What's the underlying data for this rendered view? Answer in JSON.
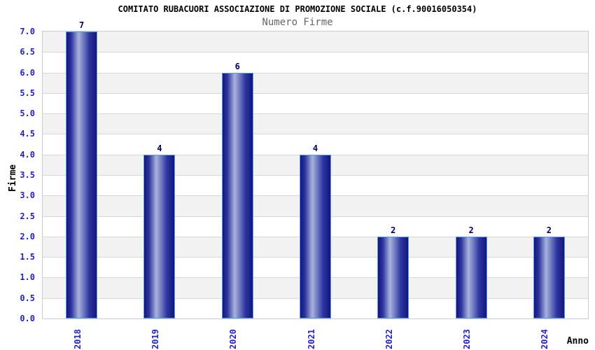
{
  "chart_data": {
    "type": "bar",
    "title": "COMITATO RUBACUORI ASSOCIAZIONE DI PROMOZIONE SOCIALE (c.f.90016050354)",
    "subtitle": "Numero Firme",
    "xlabel": "Anno",
    "ylabel": "Firme",
    "categories": [
      "2018",
      "2019",
      "2020",
      "2021",
      "2022",
      "2023",
      "2024"
    ],
    "values": [
      7,
      4,
      6,
      4,
      2,
      2,
      2
    ],
    "ylim": [
      0,
      7
    ],
    "ytick_step": 0.5,
    "ytick_labels": [
      "0.0",
      "0.5",
      "1.0",
      "1.5",
      "2.0",
      "2.5",
      "3.0",
      "3.5",
      "4.0",
      "4.5",
      "5.0",
      "5.5",
      "6.0",
      "6.5",
      "7.0"
    ],
    "legend": "none",
    "grid": "horizontal-bands",
    "colors": {
      "bar_edge_dark": "#15157c",
      "bar_mid_dark": "#2c35a0",
      "bar_light": "#a9b3dd",
      "bar_border": "#55a0e8",
      "value_label": "#000066",
      "tick_label": "#2222cc",
      "band_gray": "#f2f2f2",
      "band_white": "#ffffff",
      "gridline": "#d8d8d8",
      "plot_border": "#cccccc",
      "title_color": "#000000",
      "subtitle_color": "#666666"
    }
  }
}
